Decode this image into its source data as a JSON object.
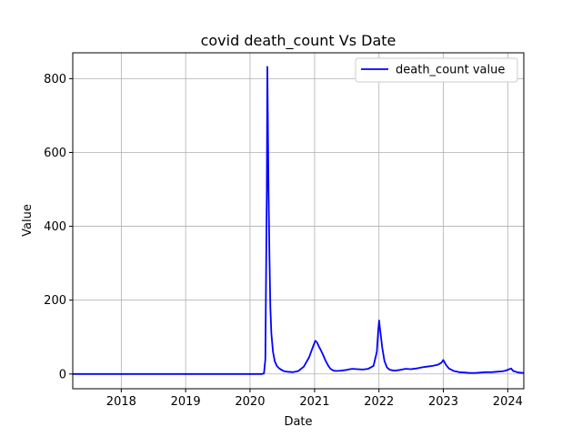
{
  "chart_data": {
    "type": "line",
    "title": "covid death_count Vs Date",
    "xlabel": "Date",
    "ylabel": "Value",
    "xlim": [
      "2017-04-01",
      "2024-04-01"
    ],
    "ylim": [
      -40,
      870
    ],
    "xticks": [
      "2018",
      "2019",
      "2020",
      "2021",
      "2022",
      "2023",
      "2024"
    ],
    "yticks": [
      0,
      200,
      400,
      600,
      800
    ],
    "grid": true,
    "legend": {
      "position": "upper right",
      "entries": [
        "death_count value"
      ]
    },
    "series": [
      {
        "name": "death_count value",
        "color": "#0000ff",
        "x": [
          "2017-04-01",
          "2019-06-01",
          "2020-03-10",
          "2020-03-20",
          "2020-03-28",
          "2020-04-05",
          "2020-04-08",
          "2020-04-10",
          "2020-04-12",
          "2020-04-15",
          "2020-04-20",
          "2020-04-25",
          "2020-05-01",
          "2020-05-10",
          "2020-05-20",
          "2020-06-01",
          "2020-06-15",
          "2020-07-01",
          "2020-07-15",
          "2020-08-01",
          "2020-09-01",
          "2020-10-01",
          "2020-11-01",
          "2020-12-01",
          "2020-12-20",
          "2021-01-05",
          "2021-01-15",
          "2021-01-25",
          "2021-02-05",
          "2021-02-20",
          "2021-03-05",
          "2021-03-20",
          "2021-04-01",
          "2021-04-15",
          "2021-05-01",
          "2021-06-01",
          "2021-07-01",
          "2021-08-01",
          "2021-09-01",
          "2021-10-01",
          "2021-11-01",
          "2021-12-01",
          "2021-12-20",
          "2021-12-28",
          "2022-01-02",
          "2022-01-05",
          "2022-01-10",
          "2022-01-20",
          "2022-02-01",
          "2022-02-15",
          "2022-03-01",
          "2022-03-15",
          "2022-04-01",
          "2022-05-01",
          "2022-06-01",
          "2022-07-01",
          "2022-08-01",
          "2022-09-01",
          "2022-10-01",
          "2022-11-01",
          "2022-12-01",
          "2022-12-20",
          "2023-01-01",
          "2023-01-15",
          "2023-02-01",
          "2023-03-01",
          "2023-04-01",
          "2023-05-01",
          "2023-06-01",
          "2023-07-01",
          "2023-08-01",
          "2023-09-01",
          "2023-10-01",
          "2023-11-01",
          "2023-12-01",
          "2023-12-20",
          "2024-01-05",
          "2024-01-20",
          "2024-02-01",
          "2024-03-01",
          "2024-04-01"
        ],
        "y": [
          0,
          0,
          0,
          2,
          40,
          500,
          832,
          760,
          650,
          500,
          320,
          180,
          110,
          60,
          35,
          22,
          15,
          10,
          7,
          6,
          5,
          8,
          20,
          45,
          70,
          90,
          85,
          75,
          65,
          50,
          35,
          22,
          14,
          10,
          8,
          9,
          11,
          14,
          13,
          12,
          14,
          22,
          60,
          120,
          145,
          130,
          110,
          70,
          35,
          18,
          12,
          10,
          9,
          11,
          14,
          13,
          15,
          18,
          20,
          22,
          25,
          30,
          38,
          25,
          15,
          8,
          5,
          4,
          3,
          3,
          4,
          5,
          5,
          6,
          7,
          9,
          12,
          15,
          8,
          4,
          3
        ]
      }
    ]
  }
}
